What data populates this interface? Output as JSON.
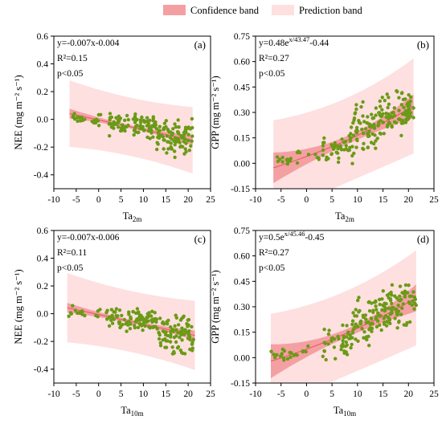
{
  "legend": {
    "confidence_label": "Confidence band",
    "prediction_label": "Prediction band",
    "confidence_color": "#f4a0a3",
    "prediction_color": "#fde0df"
  },
  "colors": {
    "point": "#6b9a17",
    "fit": "#e8585e"
  },
  "chart_data": [
    {
      "type": "scatter",
      "panel": "(a)",
      "xlabel": "Ta",
      "xlabel_sub": "2m",
      "ylabel": "NEE (mg m⁻² s⁻¹)",
      "xlim": [
        -10,
        25
      ],
      "ylim": [
        -0.5,
        0.6
      ],
      "xticks": [
        -10,
        -5,
        0,
        5,
        10,
        15,
        20,
        25
      ],
      "yticks": [
        -0.4,
        -0.2,
        0.0,
        0.2,
        0.4,
        0.6
      ],
      "ytick_labels": [
        "-0.4",
        "-0.2",
        "0.0",
        "0.2",
        "0.4",
        "0.6"
      ],
      "annotation": {
        "eq": "y=-0.007x-0.004",
        "r2": "R²=0.15",
        "p": "p<0.05"
      },
      "fit": {
        "form": "linear",
        "a": -0.007,
        "b": -0.004
      },
      "band": {
        "conf_half": [
          0.035,
          0.012,
          0.035
        ],
        "pred_half": 0.21
      },
      "x_range": [
        -6.5,
        21
      ],
      "seed": 11,
      "n": 210,
      "points": {
        "groups": [
          {
            "x": [
              -6,
              2
            ],
            "y": [
              -0.08,
              0.08
            ],
            "n": 22
          },
          {
            "x": [
              2,
              8
            ],
            "y": [
              -0.18,
              0.1
            ],
            "n": 40
          },
          {
            "x": [
              8,
              13
            ],
            "y": [
              -0.18,
              0.11
            ],
            "n": 55
          },
          {
            "x": [
              13,
              21
            ],
            "y": [
              -0.41,
              0.1
            ],
            "n": 90
          }
        ]
      }
    },
    {
      "type": "scatter",
      "panel": "(b)",
      "xlabel": "Ta",
      "xlabel_sub": "2m",
      "ylabel": "GPP (mg m⁻² s⁻¹)",
      "xlim": [
        -10,
        25
      ],
      "ylim": [
        -0.15,
        0.75
      ],
      "xticks": [
        -10,
        -5,
        0,
        5,
        10,
        15,
        20,
        25
      ],
      "yticks": [
        -0.15,
        0.0,
        0.15,
        0.3,
        0.45,
        0.6,
        0.75
      ],
      "ytick_labels": [
        "-0.15",
        "0.00",
        "0.15",
        "0.30",
        "0.45",
        "0.60",
        "0.75"
      ],
      "annotation": {
        "eq_prefix": "y=0.48",
        "eq_exp": "x/43.47",
        "eq_suffix": "-0.44",
        "r2": "R²=0.27",
        "p": "p<0.05"
      },
      "fit": {
        "form": "exp",
        "a": 0.48,
        "t": 43.47,
        "c": -0.44
      },
      "band": {
        "conf_half": [
          0.09,
          0.025,
          0.07
        ],
        "pred_half": 0.25
      },
      "x_range": [
        -6.5,
        21
      ],
      "seed": 23,
      "n": 220,
      "points": {
        "groups": [
          {
            "x": [
              -6,
              3
            ],
            "y": [
              -0.04,
              0.12
            ],
            "n": 22
          },
          {
            "x": [
              3,
              9
            ],
            "y": [
              -0.1,
              0.26
            ],
            "n": 45
          },
          {
            "x": [
              9,
              14
            ],
            "y": [
              -0.03,
              0.5
            ],
            "n": 60
          },
          {
            "x": [
              14,
              21
            ],
            "y": [
              0.07,
              0.55
            ],
            "n": 90
          }
        ]
      }
    },
    {
      "type": "scatter",
      "panel": "(c)",
      "xlabel": "Ta",
      "xlabel_sub": "10m",
      "ylabel": "NEE (mg m⁻² s⁻¹)",
      "xlim": [
        -10,
        25
      ],
      "ylim": [
        -0.5,
        0.6
      ],
      "xticks": [
        -10,
        -5,
        0,
        5,
        10,
        15,
        20,
        25
      ],
      "yticks": [
        -0.4,
        -0.2,
        0.0,
        0.2,
        0.4,
        0.6
      ],
      "ytick_labels": [
        "-0.4",
        "-0.2",
        "0.0",
        "0.2",
        "0.4",
        "0.6"
      ],
      "annotation": {
        "eq": "y=-0.007x-0.006",
        "r2": "R²=0.11",
        "p": "p<0.05"
      },
      "fit": {
        "form": "linear",
        "a": -0.007,
        "b": -0.006
      },
      "band": {
        "conf_half": [
          0.035,
          0.012,
          0.035
        ],
        "pred_half": 0.22
      },
      "x_range": [
        -7,
        21.5
      ],
      "seed": 37,
      "n": 210,
      "points": {
        "groups": [
          {
            "x": [
              -7,
              2
            ],
            "y": [
              -0.08,
              0.1
            ],
            "n": 22
          },
          {
            "x": [
              2,
              8
            ],
            "y": [
              -0.18,
              0.1
            ],
            "n": 40
          },
          {
            "x": [
              8,
              13
            ],
            "y": [
              -0.18,
              0.11
            ],
            "n": 55
          },
          {
            "x": [
              13,
              21.5
            ],
            "y": [
              -0.41,
              0.1
            ],
            "n": 90
          }
        ]
      }
    },
    {
      "type": "scatter",
      "panel": "(d)",
      "xlabel": "Ta",
      "xlabel_sub": "10m",
      "ylabel": "GPP (mg m⁻² s⁻¹)",
      "xlim": [
        -10,
        25
      ],
      "ylim": [
        -0.15,
        0.75
      ],
      "xticks": [
        -10,
        -5,
        0,
        5,
        10,
        15,
        20,
        25
      ],
      "yticks": [
        -0.15,
        0.0,
        0.15,
        0.3,
        0.45,
        0.6,
        0.75
      ],
      "ytick_labels": [
        "-0.15",
        "0.00",
        "0.15",
        "0.30",
        "0.45",
        "0.60",
        "0.75"
      ],
      "annotation": {
        "eq_prefix": "y=0.5",
        "eq_exp": "x/45.46",
        "eq_suffix": "-0.45",
        "r2": "R²=0.27",
        "p": "p<0.05"
      },
      "fit": {
        "form": "exp",
        "a": 0.5,
        "t": 45.46,
        "c": -0.45
      },
      "band": {
        "conf_half": [
          0.1,
          0.025,
          0.08
        ],
        "pred_half": 0.25
      },
      "x_range": [
        -7,
        21.5
      ],
      "seed": 53,
      "n": 220,
      "points": {
        "groups": [
          {
            "x": [
              -7,
              3
            ],
            "y": [
              -0.04,
              0.12
            ],
            "n": 22
          },
          {
            "x": [
              3,
              9
            ],
            "y": [
              -0.1,
              0.26
            ],
            "n": 45
          },
          {
            "x": [
              9,
              14
            ],
            "y": [
              -0.03,
              0.5
            ],
            "n": 60
          },
          {
            "x": [
              14,
              21.5
            ],
            "y": [
              0.07,
              0.55
            ],
            "n": 90
          }
        ]
      }
    }
  ]
}
